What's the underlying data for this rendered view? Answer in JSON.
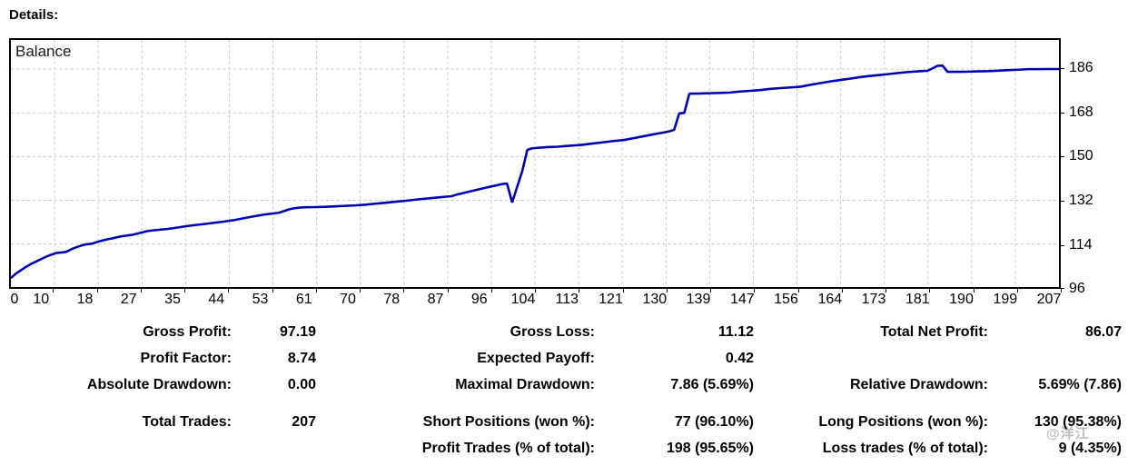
{
  "page": {
    "title": "Details:"
  },
  "chart": {
    "legend_label": "Balance",
    "line_color": "#0000B4",
    "grid_color": "#C8C8C8",
    "y_axis_labels": [
      "186",
      "168",
      "150",
      "132",
      "114",
      "96"
    ],
    "x_axis_labels": [
      "0",
      "10",
      "18",
      "27",
      "35",
      "44",
      "53",
      "61",
      "70",
      "78",
      "87",
      "96",
      "104",
      "113",
      "121",
      "130",
      "139",
      "147",
      "156",
      "164",
      "173",
      "181",
      "190",
      "199",
      "207"
    ]
  },
  "chart_data": {
    "type": "line",
    "title": "Balance",
    "xlabel": "",
    "ylabel": "",
    "xlim": [
      0,
      207
    ],
    "ylim": [
      96,
      192.8
    ],
    "x_ticks": [
      0,
      10,
      18,
      27,
      35,
      44,
      53,
      61,
      70,
      78,
      87,
      96,
      104,
      113,
      121,
      130,
      139,
      147,
      156,
      164,
      173,
      181,
      190,
      199,
      207
    ],
    "y_ticks": [
      96,
      114,
      132,
      150,
      168,
      186
    ],
    "grid": true,
    "legend_position": "top-left",
    "series": [
      {
        "name": "Balance",
        "points": [
          [
            0,
            100
          ],
          [
            1,
            101.8
          ],
          [
            2,
            103.2
          ],
          [
            3,
            104.6
          ],
          [
            4,
            105.8
          ],
          [
            5,
            106.8
          ],
          [
            6,
            107.8
          ],
          [
            7,
            108.8
          ],
          [
            8,
            109.6
          ],
          [
            9,
            110.3
          ],
          [
            10,
            110.5
          ],
          [
            11,
            110.8
          ],
          [
            12,
            111.9
          ],
          [
            13,
            112.7
          ],
          [
            14,
            113.4
          ],
          [
            15,
            113.9
          ],
          [
            16,
            114.1
          ],
          [
            17,
            114.8
          ],
          [
            18,
            115.4
          ],
          [
            19,
            115.9
          ],
          [
            20,
            116.3
          ],
          [
            21,
            116.8
          ],
          [
            22,
            117.2
          ],
          [
            23,
            117.5
          ],
          [
            24,
            117.8
          ],
          [
            25,
            118.3
          ],
          [
            26,
            118.8
          ],
          [
            27,
            119.3
          ],
          [
            28,
            119.6
          ],
          [
            29,
            119.8
          ],
          [
            30,
            120
          ],
          [
            31,
            120.2
          ],
          [
            32,
            120.5
          ],
          [
            33,
            120.8
          ],
          [
            34,
            121.1
          ],
          [
            35,
            121.4
          ],
          [
            36,
            121.7
          ],
          [
            38,
            122.2
          ],
          [
            40,
            122.7
          ],
          [
            42,
            123.2
          ],
          [
            44,
            123.8
          ],
          [
            46,
            124.6
          ],
          [
            48,
            125.4
          ],
          [
            50,
            126.1
          ],
          [
            52,
            126.6
          ],
          [
            53,
            126.9
          ],
          [
            54,
            127.6
          ],
          [
            55,
            128.3
          ],
          [
            56,
            128.7
          ],
          [
            57,
            129
          ],
          [
            58,
            129.1
          ],
          [
            60,
            129.2
          ],
          [
            62,
            129.3
          ],
          [
            64,
            129.5
          ],
          [
            66,
            129.7
          ],
          [
            68,
            129.9
          ],
          [
            70,
            130.2
          ],
          [
            72,
            130.6
          ],
          [
            74,
            131
          ],
          [
            76,
            131.4
          ],
          [
            78,
            131.8
          ],
          [
            80,
            132.3
          ],
          [
            82,
            132.7
          ],
          [
            84,
            133.1
          ],
          [
            86,
            133.5
          ],
          [
            87,
            133.7
          ],
          [
            88,
            134.3
          ],
          [
            90,
            135.3
          ],
          [
            92,
            136.3
          ],
          [
            94,
            137.3
          ],
          [
            96,
            138.2
          ],
          [
            97,
            138.7
          ],
          [
            98,
            138.9
          ],
          [
            99,
            131.1
          ],
          [
            101,
            144
          ],
          [
            102,
            152.8
          ],
          [
            103,
            153.4
          ],
          [
            104,
            153.6
          ],
          [
            106,
            153.9
          ],
          [
            108,
            154.1
          ],
          [
            110,
            154.4
          ],
          [
            112,
            154.7
          ],
          [
            113,
            154.9
          ],
          [
            115,
            155.4
          ],
          [
            117,
            155.9
          ],
          [
            119,
            156.4
          ],
          [
            121,
            156.8
          ],
          [
            123,
            157.6
          ],
          [
            125,
            158.4
          ],
          [
            127,
            159.2
          ],
          [
            129,
            160
          ],
          [
            130,
            160.4
          ],
          [
            131,
            161
          ],
          [
            132,
            167.8
          ],
          [
            133,
            168
          ],
          [
            134,
            175.9
          ],
          [
            136,
            176
          ],
          [
            138,
            176.1
          ],
          [
            140,
            176.2
          ],
          [
            142,
            176.4
          ],
          [
            144,
            176.8
          ],
          [
            146,
            177.1
          ],
          [
            148,
            177.4
          ],
          [
            150,
            177.9
          ],
          [
            152,
            178.2
          ],
          [
            154,
            178.5
          ],
          [
            156,
            178.8
          ],
          [
            158,
            179.6
          ],
          [
            160,
            180.3
          ],
          [
            162,
            181
          ],
          [
            164,
            181.6
          ],
          [
            166,
            182.2
          ],
          [
            168,
            182.8
          ],
          [
            170,
            183.3
          ],
          [
            172,
            183.7
          ],
          [
            173,
            183.9
          ],
          [
            175,
            184.4
          ],
          [
            177,
            184.8
          ],
          [
            179,
            185.1
          ],
          [
            181,
            185.3
          ],
          [
            182,
            186.3
          ],
          [
            183,
            187.4
          ],
          [
            184,
            187.5
          ],
          [
            185,
            184.9
          ],
          [
            187,
            184.9
          ],
          [
            189,
            185
          ],
          [
            191,
            185.1
          ],
          [
            193,
            185.2
          ],
          [
            195,
            185.4
          ],
          [
            197,
            185.6
          ],
          [
            199,
            185.8
          ],
          [
            201,
            186
          ],
          [
            203,
            186
          ],
          [
            205,
            186.05
          ],
          [
            207,
            186.07
          ]
        ]
      }
    ]
  },
  "stats": {
    "rows": [
      [
        "Gross Profit:",
        "97.19",
        "Gross Loss:",
        "11.12",
        "Total Net Profit:",
        "86.07"
      ],
      [
        "Profit Factor:",
        "8.74",
        "Expected Payoff:",
        "0.42",
        "",
        ""
      ],
      [
        "Absolute Drawdown:",
        "0.00",
        "Maximal Drawdown:",
        "7.86 (5.69%)",
        "Relative Drawdown:",
        "5.69% (7.86)"
      ],
      [
        "Total Trades:",
        "207",
        "Short Positions (won %):",
        "77 (96.10%)",
        "Long Positions (won %):",
        "130 (95.38%)"
      ],
      [
        "",
        "",
        "Profit Trades (% of total):",
        "198 (95.65%)",
        "Loss trades (% of total):",
        "9 (4.35%)"
      ]
    ]
  },
  "watermark": {
    "text": "@洋江"
  }
}
